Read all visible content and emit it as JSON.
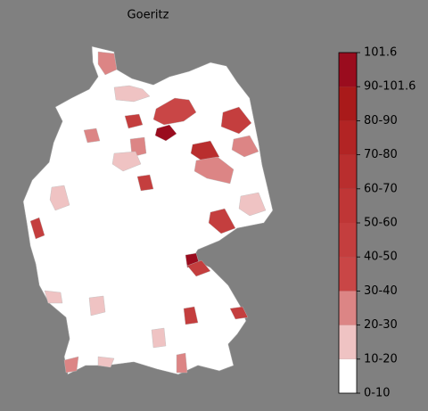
{
  "title": "Goeritz",
  "colorbar": {
    "labels": [
      "0-10",
      "10-20",
      "20-30",
      "30-40",
      "40-50",
      "50-60",
      "60-70",
      "70-80",
      "80-90",
      "90-101.6",
      "101.6"
    ],
    "colors": [
      "#ffffff",
      "#efc3c3",
      "#dc8585",
      "#c94646",
      "#c43e3e",
      "#bf3636",
      "#b92e2e",
      "#b22424",
      "#a91a1a",
      "#9a0c1e"
    ]
  }
}
